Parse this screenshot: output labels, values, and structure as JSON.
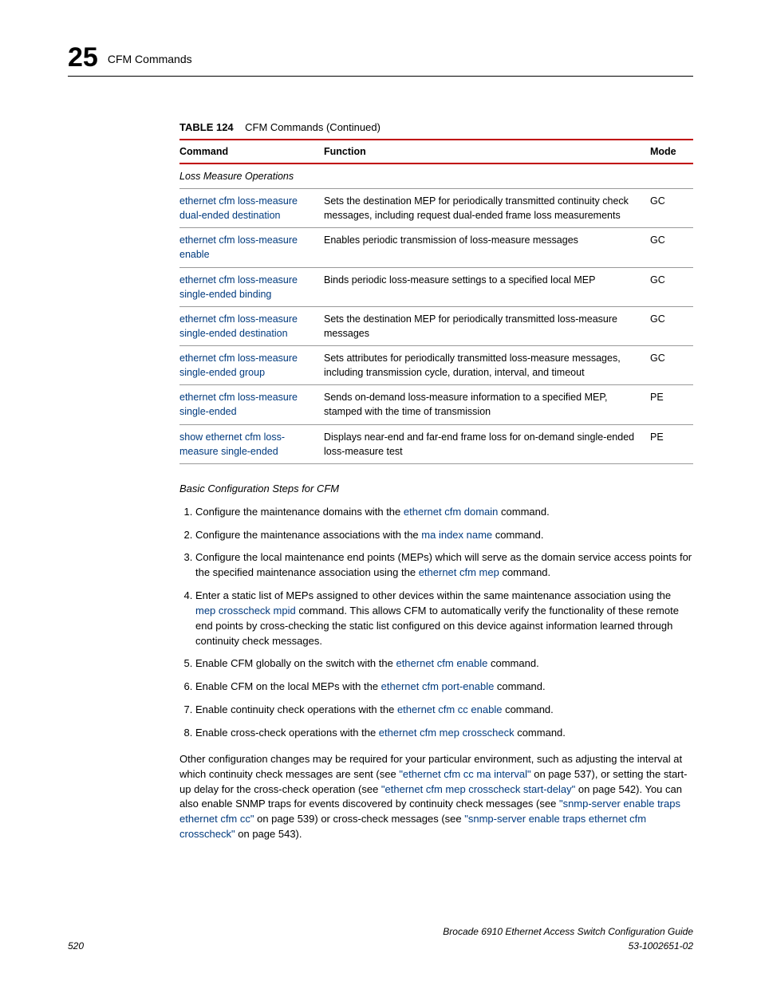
{
  "header": {
    "chapter_number": "25",
    "chapter_title": "CFM Commands"
  },
  "table": {
    "caption_label": "TABLE 124",
    "caption_text": "CFM Commands (Continued)",
    "columns": {
      "command": "Command",
      "function": "Function",
      "mode": "Mode"
    },
    "section_heading": "Loss Measure Operations",
    "rows": [
      {
        "command": "ethernet cfm loss-measure dual-ended destination",
        "function": "Sets the destination MEP for periodically transmitted continuity check messages, including request dual-ended frame loss measurements",
        "mode": "GC"
      },
      {
        "command": "ethernet cfm loss-measure enable",
        "function": "Enables periodic transmission of loss-measure messages",
        "mode": "GC"
      },
      {
        "command": "ethernet cfm loss-measure single-ended binding",
        "function": "Binds periodic loss-measure settings to a specified local MEP",
        "mode": "GC"
      },
      {
        "command": "ethernet cfm loss-measure single-ended destination",
        "function": "Sets the destination MEP for periodically transmitted loss-measure messages",
        "mode": "GC"
      },
      {
        "command": "ethernet cfm loss-measure single-ended group",
        "function": "Sets attributes for periodically transmitted loss-measure messages, including transmission cycle, duration, interval, and timeout",
        "mode": "GC"
      },
      {
        "command": "ethernet cfm loss-measure single-ended",
        "function": "Sends on-demand loss-measure information to a specified MEP, stamped with the time of transmission",
        "mode": "PE"
      },
      {
        "command": "show ethernet cfm loss-measure single-ended",
        "function": "Displays near-end and far-end frame loss for on-demand single-ended loss-measure test",
        "mode": "PE"
      }
    ]
  },
  "config_heading": "Basic Configuration Steps for CFM",
  "steps": [
    {
      "pre": "Configure the maintenance domains with the ",
      "link": "ethernet cfm domain",
      "post": " command."
    },
    {
      "pre": "Configure the maintenance associations with the ",
      "link": "ma index name",
      "post": " command."
    },
    {
      "pre": "Configure the local maintenance end points (MEPs) which will serve as the domain service access points for the specified maintenance association using the ",
      "link": "ethernet cfm mep",
      "post": " command."
    },
    {
      "pre": "Enter a static list of MEPs assigned to other devices within the same maintenance association using the ",
      "link": "mep crosscheck mpid",
      "post": " command. This allows CFM to automatically verify the functionality of these remote end points by cross-checking the static list configured on this device against information learned through continuity check messages."
    },
    {
      "pre": "Enable CFM globally on the switch with the ",
      "link": "ethernet cfm enable",
      "post": " command."
    },
    {
      "pre": "Enable CFM on the local MEPs with the ",
      "link": "ethernet cfm port-enable",
      "post": " command."
    },
    {
      "pre": "Enable continuity check operations with the ",
      "link": "ethernet cfm cc enable",
      "post": " command."
    },
    {
      "pre": "Enable cross-check operations with the ",
      "link": "ethernet cfm mep crosscheck",
      "post": " command."
    }
  ],
  "closing": {
    "t1": "Other configuration changes may be required for your particular environment, such as adjusting the interval at which continuity check messages are sent (see ",
    "l1": "\"ethernet cfm cc ma interval\"",
    "t2": " on page 537), or setting the start-up delay for the cross-check operation (see ",
    "l2": "\"ethernet cfm mep crosscheck start-delay\"",
    "t3": " on page 542). You can also enable SNMP traps for events discovered by continuity check messages (see ",
    "l3": "\"snmp-server enable traps ethernet cfm cc\"",
    "t4": " on page 539) or cross-check messages (see ",
    "l4": "\"snmp-server enable traps ethernet cfm crosscheck\"",
    "t5": " on page 543)."
  },
  "footer": {
    "page_number": "520",
    "book_title": "Brocade 6910 Ethernet Access Switch Configuration Guide",
    "doc_number": "53-1002651-02"
  }
}
